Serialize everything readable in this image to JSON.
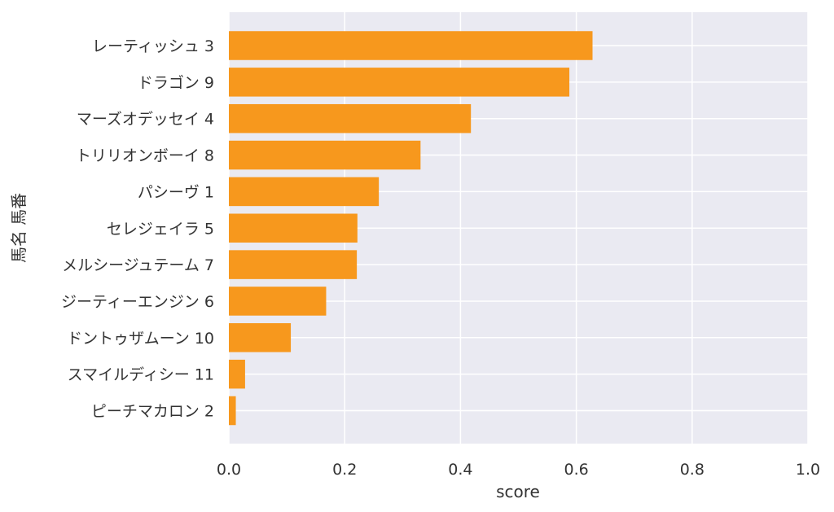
{
  "chart_data": {
    "type": "bar",
    "orientation": "horizontal",
    "xlabel": "score",
    "ylabel": "馬名 馬番",
    "xlim": [
      0,
      1.0
    ],
    "xticks": [
      "0.0",
      "0.2",
      "0.4",
      "0.6",
      "0.8",
      "1.0"
    ],
    "xtick_values": [
      0,
      0.2,
      0.4,
      0.6,
      0.8,
      1.0
    ],
    "categories": [
      "レーティッシュ 3",
      "ドラゴン 9",
      "マーズオデッセイ 4",
      "トリリオンボーイ 8",
      "パシーヴ 1",
      "セレジェイラ 5",
      "メルシージュテーム 7",
      "ジーティーエンジン 6",
      "ドントゥザムーン 10",
      "スマイルディシー 11",
      "ピーチマカロン 2"
    ],
    "values": [
      0.628,
      0.588,
      0.418,
      0.331,
      0.259,
      0.222,
      0.221,
      0.168,
      0.107,
      0.028,
      0.012
    ],
    "grid": true,
    "colors": {
      "bar": "#f7981d",
      "background": "#eaeaf2",
      "grid": "#ffffff",
      "text": "#333333"
    }
  }
}
